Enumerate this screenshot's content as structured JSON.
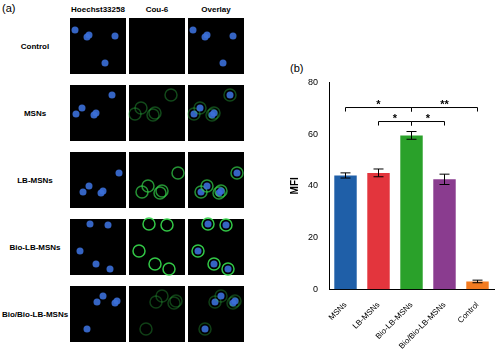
{
  "panel_a": {
    "label": "(a)",
    "columns": [
      "Hoechst33258",
      "Cou-6",
      "Overlay"
    ],
    "rows": [
      "Control",
      "MSNs",
      "LB-MSNs",
      "Bio-LB-MSNs",
      "Bio/Bio-LB-MSNs"
    ]
  },
  "chart_data": {
    "type": "bar",
    "panel_label": "(b)",
    "y_label": "MFI",
    "categories": [
      "MSNs",
      "LB-MSNs",
      "Bio-LB-MSNs",
      "Bio/Bio-LB-MSNs",
      "Control"
    ],
    "values": [
      44,
      45,
      59.5,
      42.5,
      3
    ],
    "errors": [
      1,
      1.5,
      1.5,
      2,
      0.5
    ],
    "colors": [
      "#1f5fa8",
      "#e3353d",
      "#2aa12a",
      "#8a3c8f",
      "#f47b20"
    ],
    "ylim": [
      0,
      80
    ],
    "yticks": [
      0,
      20,
      40,
      60,
      80
    ],
    "grid": false,
    "significance": [
      {
        "from": "LB-MSNs",
        "to": "Bio-LB-MSNs",
        "label": "*"
      },
      {
        "from": "Bio-LB-MSNs",
        "to": "Bio/Bio-LB-MSNs",
        "label": "*"
      },
      {
        "from": "MSNs",
        "to": "Bio-LB-MSNs",
        "label": "*"
      },
      {
        "from": "Bio-LB-MSNs",
        "to": "Control",
        "label": "**"
      }
    ]
  }
}
